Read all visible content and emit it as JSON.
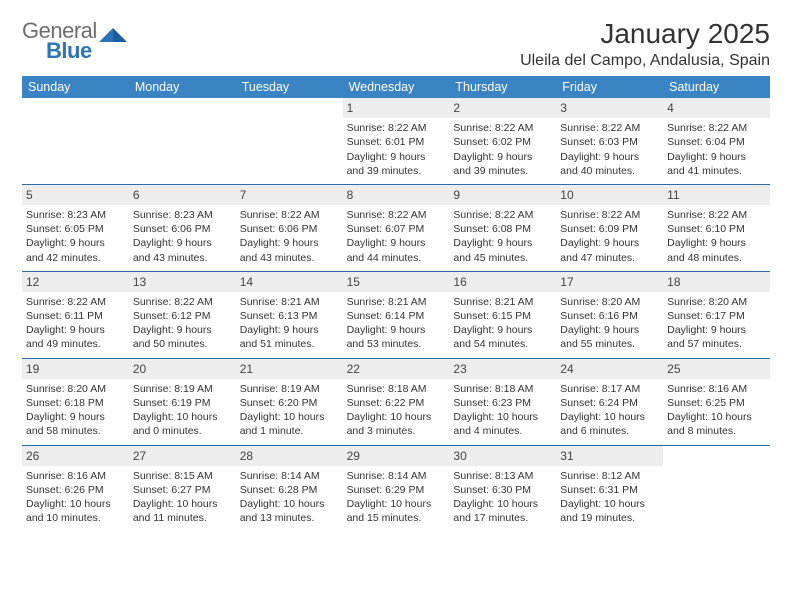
{
  "logo": {
    "text1": "General",
    "text2": "Blue"
  },
  "title": "January 2025",
  "location": "Uleila del Campo, Andalusia, Spain",
  "colors": {
    "header_bg": "#3b84c4",
    "header_text": "#ffffff",
    "daynum_bg": "#ededed",
    "week_border": "#2c6ca8",
    "logo_gray": "#6d6d6d",
    "logo_blue": "#2d73b6"
  },
  "day_names": [
    "Sunday",
    "Monday",
    "Tuesday",
    "Wednesday",
    "Thursday",
    "Friday",
    "Saturday"
  ],
  "weeks": [
    [
      {
        "n": "",
        "sr": "",
        "ss": "",
        "dl": ""
      },
      {
        "n": "",
        "sr": "",
        "ss": "",
        "dl": ""
      },
      {
        "n": "",
        "sr": "",
        "ss": "",
        "dl": ""
      },
      {
        "n": "1",
        "sr": "Sunrise: 8:22 AM",
        "ss": "Sunset: 6:01 PM",
        "dl": "Daylight: 9 hours and 39 minutes."
      },
      {
        "n": "2",
        "sr": "Sunrise: 8:22 AM",
        "ss": "Sunset: 6:02 PM",
        "dl": "Daylight: 9 hours and 39 minutes."
      },
      {
        "n": "3",
        "sr": "Sunrise: 8:22 AM",
        "ss": "Sunset: 6:03 PM",
        "dl": "Daylight: 9 hours and 40 minutes."
      },
      {
        "n": "4",
        "sr": "Sunrise: 8:22 AM",
        "ss": "Sunset: 6:04 PM",
        "dl": "Daylight: 9 hours and 41 minutes."
      }
    ],
    [
      {
        "n": "5",
        "sr": "Sunrise: 8:23 AM",
        "ss": "Sunset: 6:05 PM",
        "dl": "Daylight: 9 hours and 42 minutes."
      },
      {
        "n": "6",
        "sr": "Sunrise: 8:23 AM",
        "ss": "Sunset: 6:06 PM",
        "dl": "Daylight: 9 hours and 43 minutes."
      },
      {
        "n": "7",
        "sr": "Sunrise: 8:22 AM",
        "ss": "Sunset: 6:06 PM",
        "dl": "Daylight: 9 hours and 43 minutes."
      },
      {
        "n": "8",
        "sr": "Sunrise: 8:22 AM",
        "ss": "Sunset: 6:07 PM",
        "dl": "Daylight: 9 hours and 44 minutes."
      },
      {
        "n": "9",
        "sr": "Sunrise: 8:22 AM",
        "ss": "Sunset: 6:08 PM",
        "dl": "Daylight: 9 hours and 45 minutes."
      },
      {
        "n": "10",
        "sr": "Sunrise: 8:22 AM",
        "ss": "Sunset: 6:09 PM",
        "dl": "Daylight: 9 hours and 47 minutes."
      },
      {
        "n": "11",
        "sr": "Sunrise: 8:22 AM",
        "ss": "Sunset: 6:10 PM",
        "dl": "Daylight: 9 hours and 48 minutes."
      }
    ],
    [
      {
        "n": "12",
        "sr": "Sunrise: 8:22 AM",
        "ss": "Sunset: 6:11 PM",
        "dl": "Daylight: 9 hours and 49 minutes."
      },
      {
        "n": "13",
        "sr": "Sunrise: 8:22 AM",
        "ss": "Sunset: 6:12 PM",
        "dl": "Daylight: 9 hours and 50 minutes."
      },
      {
        "n": "14",
        "sr": "Sunrise: 8:21 AM",
        "ss": "Sunset: 6:13 PM",
        "dl": "Daylight: 9 hours and 51 minutes."
      },
      {
        "n": "15",
        "sr": "Sunrise: 8:21 AM",
        "ss": "Sunset: 6:14 PM",
        "dl": "Daylight: 9 hours and 53 minutes."
      },
      {
        "n": "16",
        "sr": "Sunrise: 8:21 AM",
        "ss": "Sunset: 6:15 PM",
        "dl": "Daylight: 9 hours and 54 minutes."
      },
      {
        "n": "17",
        "sr": "Sunrise: 8:20 AM",
        "ss": "Sunset: 6:16 PM",
        "dl": "Daylight: 9 hours and 55 minutes."
      },
      {
        "n": "18",
        "sr": "Sunrise: 8:20 AM",
        "ss": "Sunset: 6:17 PM",
        "dl": "Daylight: 9 hours and 57 minutes."
      }
    ],
    [
      {
        "n": "19",
        "sr": "Sunrise: 8:20 AM",
        "ss": "Sunset: 6:18 PM",
        "dl": "Daylight: 9 hours and 58 minutes."
      },
      {
        "n": "20",
        "sr": "Sunrise: 8:19 AM",
        "ss": "Sunset: 6:19 PM",
        "dl": "Daylight: 10 hours and 0 minutes."
      },
      {
        "n": "21",
        "sr": "Sunrise: 8:19 AM",
        "ss": "Sunset: 6:20 PM",
        "dl": "Daylight: 10 hours and 1 minute."
      },
      {
        "n": "22",
        "sr": "Sunrise: 8:18 AM",
        "ss": "Sunset: 6:22 PM",
        "dl": "Daylight: 10 hours and 3 minutes."
      },
      {
        "n": "23",
        "sr": "Sunrise: 8:18 AM",
        "ss": "Sunset: 6:23 PM",
        "dl": "Daylight: 10 hours and 4 minutes."
      },
      {
        "n": "24",
        "sr": "Sunrise: 8:17 AM",
        "ss": "Sunset: 6:24 PM",
        "dl": "Daylight: 10 hours and 6 minutes."
      },
      {
        "n": "25",
        "sr": "Sunrise: 8:16 AM",
        "ss": "Sunset: 6:25 PM",
        "dl": "Daylight: 10 hours and 8 minutes."
      }
    ],
    [
      {
        "n": "26",
        "sr": "Sunrise: 8:16 AM",
        "ss": "Sunset: 6:26 PM",
        "dl": "Daylight: 10 hours and 10 minutes."
      },
      {
        "n": "27",
        "sr": "Sunrise: 8:15 AM",
        "ss": "Sunset: 6:27 PM",
        "dl": "Daylight: 10 hours and 11 minutes."
      },
      {
        "n": "28",
        "sr": "Sunrise: 8:14 AM",
        "ss": "Sunset: 6:28 PM",
        "dl": "Daylight: 10 hours and 13 minutes."
      },
      {
        "n": "29",
        "sr": "Sunrise: 8:14 AM",
        "ss": "Sunset: 6:29 PM",
        "dl": "Daylight: 10 hours and 15 minutes."
      },
      {
        "n": "30",
        "sr": "Sunrise: 8:13 AM",
        "ss": "Sunset: 6:30 PM",
        "dl": "Daylight: 10 hours and 17 minutes."
      },
      {
        "n": "31",
        "sr": "Sunrise: 8:12 AM",
        "ss": "Sunset: 6:31 PM",
        "dl": "Daylight: 10 hours and 19 minutes."
      },
      {
        "n": "",
        "sr": "",
        "ss": "",
        "dl": ""
      }
    ]
  ]
}
